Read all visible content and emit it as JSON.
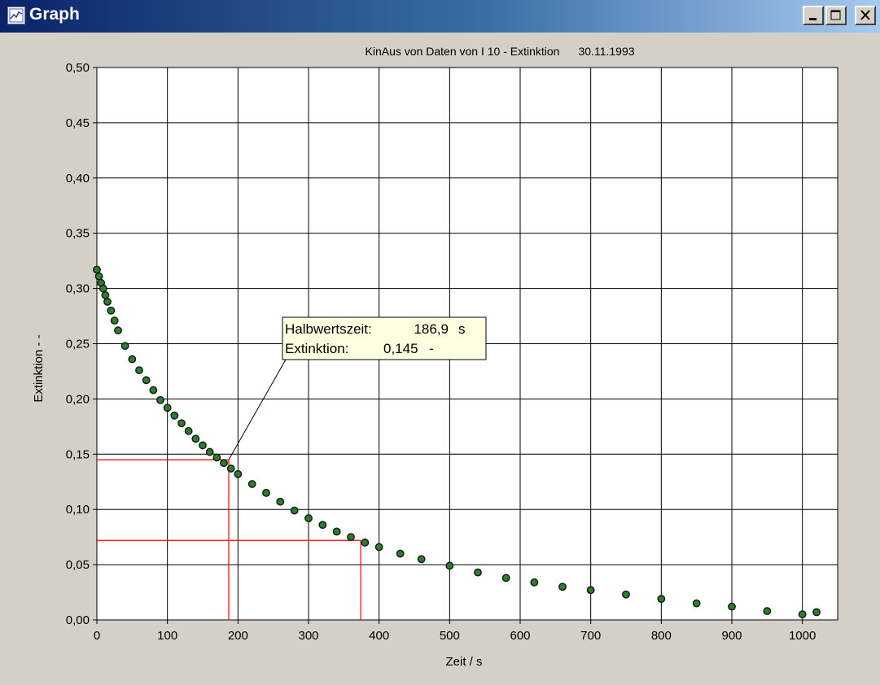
{
  "window": {
    "title": "Graph",
    "icon": "graph-icon",
    "buttons": [
      "minimize-icon",
      "maximize-icon",
      "close-icon"
    ]
  },
  "colors": {
    "titlebar_start": "#0a246a",
    "titlebar_end": "#a6caf0",
    "marker": "#2e7d2e",
    "marker_outline": "#0c1a0c",
    "guide": "#ff0000",
    "tooltip_bg": "#ffffe1"
  },
  "chart_data": {
    "type": "scatter",
    "title": "KinAus von Daten von I 10 - Extinktion",
    "date": "30.11.1993",
    "xlabel": "Zeit / s",
    "ylabel": "Extinktion - -",
    "xlim": [
      0,
      1050
    ],
    "ylim": [
      0,
      0.5
    ],
    "grid": true,
    "x_ticks": [
      "0",
      "100",
      "200",
      "300",
      "400",
      "500",
      "600",
      "700",
      "800",
      "900",
      "1000"
    ],
    "y_ticks": [
      "0,00",
      "0,05",
      "0,10",
      "0,15",
      "0,20",
      "0,25",
      "0,30",
      "0,35",
      "0,40",
      "0,45",
      "0,50"
    ],
    "series": [
      {
        "x": [
          0,
          3,
          6,
          9,
          12,
          15,
          20,
          25,
          30,
          40,
          50,
          60,
          70,
          80,
          90,
          100,
          110,
          120,
          130,
          140,
          150,
          160,
          170,
          180,
          190,
          200,
          220,
          240,
          260,
          280,
          300,
          320,
          340,
          360,
          380,
          400,
          430,
          460,
          500,
          540,
          580,
          620,
          660,
          700,
          750,
          800,
          850,
          900,
          950,
          1000,
          1020
        ],
        "y": [
          0.317,
          0.311,
          0.305,
          0.3,
          0.294,
          0.288,
          0.28,
          0.271,
          0.262,
          0.248,
          0.236,
          0.226,
          0.217,
          0.208,
          0.199,
          0.192,
          0.185,
          0.178,
          0.171,
          0.164,
          0.158,
          0.152,
          0.147,
          0.142,
          0.137,
          0.132,
          0.123,
          0.115,
          0.107,
          0.099,
          0.092,
          0.086,
          0.08,
          0.075,
          0.07,
          0.066,
          0.06,
          0.055,
          0.049,
          0.043,
          0.038,
          0.034,
          0.03,
          0.027,
          0.023,
          0.019,
          0.015,
          0.012,
          0.008,
          0.005,
          0.007
        ]
      }
    ],
    "reference_lines": [
      {
        "x": 186.9,
        "y": 0.145
      },
      {
        "x": 374,
        "y": 0.072
      }
    ],
    "annotation": {
      "row1_label": "Halbwertszeit:",
      "row1_value": "186,9",
      "row1_unit": "s",
      "row2_label": "Extinktion:",
      "row2_value": "0,145",
      "row2_unit": "-",
      "target_x": 186.9,
      "target_y": 0.145
    }
  }
}
